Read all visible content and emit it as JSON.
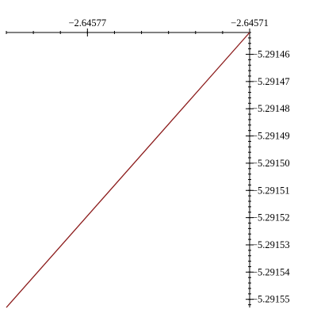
{
  "chart_data": {
    "type": "line",
    "title": "",
    "xlabel": "",
    "ylabel": "",
    "x_axis_position": "top",
    "y_axis_position": "right",
    "xlim": [
      -2.6458,
      -2.64571
    ],
    "ylim": [
      -5.291553,
      -5.291452
    ],
    "x_ticks": [
      {
        "value": -2.64577,
        "label": "−2.64577"
      },
      {
        "value": -2.64571,
        "label": "−2.64571"
      }
    ],
    "y_ticks": [
      {
        "value": -5.29146,
        "label": "−5.29146"
      },
      {
        "value": -5.29147,
        "label": "−5.29147"
      },
      {
        "value": -5.29148,
        "label": "−5.29148"
      },
      {
        "value": -5.29149,
        "label": "−5.29149"
      },
      {
        "value": -5.2915,
        "label": "−5.29150"
      },
      {
        "value": -5.29151,
        "label": "−5.29151"
      },
      {
        "value": -5.29152,
        "label": "−5.29152"
      },
      {
        "value": -5.29153,
        "label": "−5.29153"
      },
      {
        "value": -5.29154,
        "label": "−5.29154"
      },
      {
        "value": -5.29155,
        "label": "−5.29155"
      }
    ],
    "grid": false,
    "series": [
      {
        "color": "#8b1a1a",
        "x": [
          -2.6458,
          -2.64571
        ],
        "y": [
          -5.291553,
          -5.291452
        ]
      }
    ]
  }
}
